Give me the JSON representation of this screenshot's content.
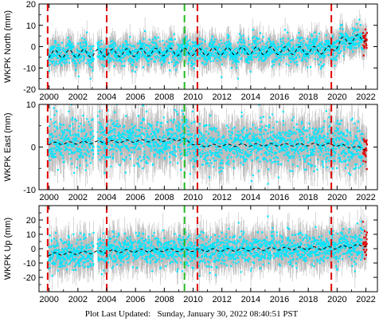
{
  "footer": {
    "label": "Plot Last Updated:",
    "datetime": "Sunday, January 30, 2022 08:40:51 PST"
  },
  "colors": {
    "data_points": "#00e5ff",
    "error_bars": "#b0b0b0",
    "model_line": "#000000",
    "recent_points": "#e00000",
    "vline_red": "#e00000",
    "vline_green": "#22bb22"
  },
  "chart_data": [
    {
      "type": "scatter",
      "ylabel": "WKPK North (mm)",
      "xlim": [
        1999.3,
        2022.8
      ],
      "ylim": [
        -20,
        20
      ],
      "yticks": [
        -20,
        -10,
        0,
        10,
        20
      ],
      "xticks": [
        2000,
        2002,
        2004,
        2006,
        2008,
        2010,
        2012,
        2014,
        2016,
        2018,
        2020,
        2022
      ],
      "grid": false,
      "legend": "none",
      "trend": {
        "x": [
          1999.9,
          2004.0,
          2008.0,
          2010.3,
          2014.0,
          2018.0,
          2019.6,
          2020.3,
          2022.1
        ],
        "y": [
          -3.5,
          -3.0,
          -2.5,
          -2.5,
          -2.0,
          -1.8,
          -1.5,
          2.5,
          4.5
        ]
      },
      "seasonal_amplitude": 1.8,
      "scatter_spread": 2.8,
      "error_bar_spread": 6,
      "red_vlines": [
        1999.9,
        2004.0,
        2010.3,
        2019.6
      ],
      "green_vlines": [
        2009.4
      ]
    },
    {
      "type": "scatter",
      "ylabel": "WKPK East (mm)",
      "xlim": [
        1999.3,
        2022.8
      ],
      "ylim": [
        -10,
        10
      ],
      "yticks": [
        -10,
        0,
        10
      ],
      "xticks": [
        2000,
        2002,
        2004,
        2006,
        2008,
        2010,
        2012,
        2014,
        2016,
        2018,
        2020,
        2022
      ],
      "grid": false,
      "legend": "none",
      "trend": {
        "x": [
          1999.9,
          2004.0,
          2009.4,
          2010.3,
          2014.0,
          2019.6,
          2022.1
        ],
        "y": [
          0.8,
          1.2,
          1.8,
          0.3,
          0.5,
          0.6,
          -0.4
        ]
      },
      "seasonal_amplitude": 0.3,
      "scatter_spread": 2.6,
      "error_bar_spread": 4.5,
      "red_vlines": [
        1999.9,
        2004.0,
        2010.3,
        2019.6
      ],
      "green_vlines": [
        2009.4
      ]
    },
    {
      "type": "scatter",
      "ylabel": "WKPK Up (mm)",
      "xlim": [
        1999.3,
        2022.8
      ],
      "ylim": [
        -30,
        30
      ],
      "yticks": [
        -20,
        -10,
        0,
        10,
        20
      ],
      "xticks": [
        2000,
        2002,
        2004,
        2006,
        2008,
        2010,
        2012,
        2014,
        2016,
        2018,
        2020,
        2022
      ],
      "grid": false,
      "legend": "none",
      "trend": {
        "x": [
          1999.9,
          2004.0,
          2008.0,
          2012.0,
          2016.0,
          2019.6,
          2022.1
        ],
        "y": [
          -4,
          -2,
          -1,
          -1,
          0,
          0.5,
          2.5
        ]
      },
      "seasonal_amplitude": 1.0,
      "scatter_spread": 5.5,
      "error_bar_spread": 11,
      "red_vlines": [
        1999.9,
        2004.0,
        2010.3,
        2019.6
      ],
      "green_vlines": [
        2009.4
      ]
    }
  ]
}
